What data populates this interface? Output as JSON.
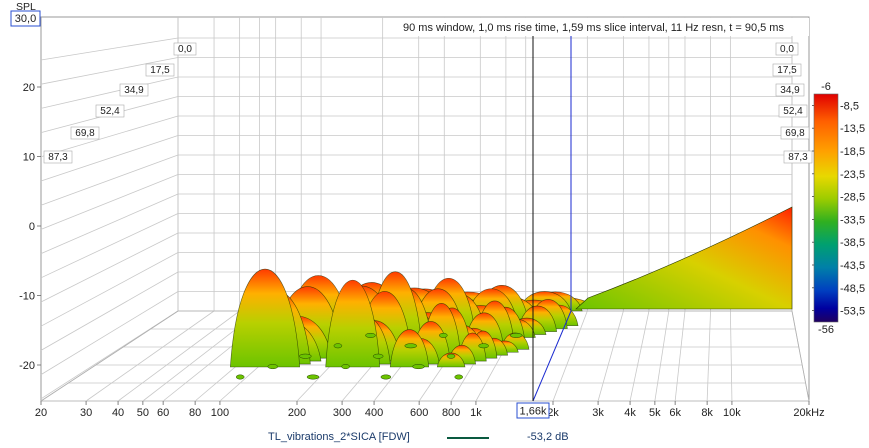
{
  "chart_data": {
    "type": "area",
    "title": "90 ms window, 1,0 ms rise time, 1,59 ms slice interval, 11 Hz resn, t = 90,5 ms",
    "ylabel": "SPL",
    "y_cursor_value": "30,0",
    "x_cursor_value": "1,66k",
    "yticks": [
      "20",
      "10",
      "0",
      "-10",
      "-20"
    ],
    "ytick_values": [
      20,
      10,
      0,
      -10,
      -20
    ],
    "ylim": [
      -25,
      30
    ],
    "xticks": [
      "20",
      "30",
      "40",
      "50",
      "60",
      "80",
      "100",
      "200",
      "300",
      "400",
      "600",
      "800",
      "1k",
      "2k",
      "3k",
      "4k",
      "5k",
      "6k",
      "8k",
      "10k",
      "20kHz"
    ],
    "xtick_values": [
      20,
      30,
      40,
      50,
      60,
      80,
      100,
      200,
      300,
      400,
      600,
      800,
      1000,
      2000,
      3000,
      4000,
      5000,
      6000,
      8000,
      10000,
      20000
    ],
    "x_scale": "log",
    "xlim": [
      20,
      20000
    ],
    "time_slices_ms": [
      "0,0",
      "17,5",
      "34,9",
      "52,4",
      "69,8",
      "87,3"
    ],
    "colorbar_ticks": [
      "-6",
      "-8,5",
      "-13,5",
      "-18,5",
      "-23,5",
      "-28,5",
      "-33,5",
      "-38,5",
      "-43,5",
      "-48,5",
      "-53,5",
      "-56"
    ],
    "colorbar_colors": [
      "#e00000",
      "#ff5000",
      "#ff8c00",
      "#ffd000",
      "#c8d200",
      "#5fbf00",
      "#20b020",
      "#00a070",
      "#0080a0",
      "#0040c0",
      "#0000a0",
      "#200060"
    ],
    "grid": true,
    "legend_placement": "bottom",
    "series": [
      {
        "name": "TL_vibrations_2*SICA [FDW]",
        "cursor_value": "-53,2 dB",
        "color": "#0a5a40"
      }
    ],
    "peaks_front_slice": [
      {
        "freq": 150,
        "level": -1.5
      },
      {
        "freq": 330,
        "level": -1.0
      },
      {
        "freq": 20000,
        "level": 2.5
      }
    ]
  }
}
